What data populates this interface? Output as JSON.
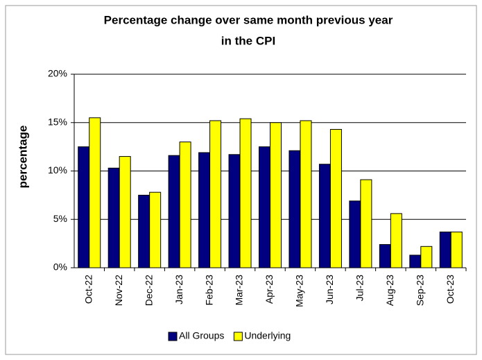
{
  "chart_data": {
    "type": "bar",
    "title_lines": [
      "Percentage change  over same month previous year",
      "in the CPI"
    ],
    "y_label": "percentage",
    "categories": [
      "Oct-22",
      "Nov-22",
      "Dec-22",
      "Jan-23",
      "Feb-23",
      "Mar-23",
      "Apr-23",
      "May-23",
      "Jun-23",
      "Jul-23",
      "Aug-23",
      "Sep-23",
      "Oct-23"
    ],
    "series": [
      {
        "name": "All Groups",
        "color": "#000080",
        "values": [
          12.5,
          10.3,
          7.5,
          11.6,
          11.9,
          11.7,
          12.5,
          12.1,
          10.7,
          6.9,
          2.4,
          1.3,
          3.7
        ]
      },
      {
        "name": "Underlying",
        "color": "#ffff00",
        "values": [
          15.5,
          11.5,
          7.8,
          13.0,
          15.2,
          15.4,
          15.0,
          15.2,
          14.3,
          9.1,
          5.6,
          2.2,
          3.7
        ]
      }
    ],
    "ylim": [
      0,
      20
    ],
    "yticks": [
      {
        "value": 0,
        "label": "0%"
      },
      {
        "value": 5,
        "label": "5%"
      },
      {
        "value": 10,
        "label": "10%"
      },
      {
        "value": 15,
        "label": "15%"
      },
      {
        "value": 20,
        "label": "20%"
      }
    ],
    "grid": true,
    "legend": "bottom"
  }
}
